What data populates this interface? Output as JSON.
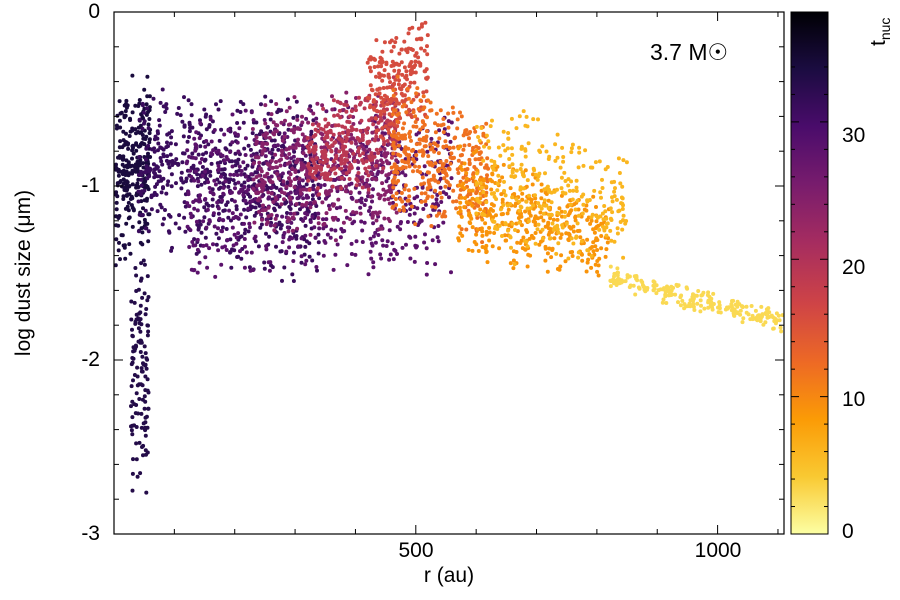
{
  "chart_data": {
    "type": "scatter",
    "xlabel": "r (au)",
    "ylabel": "log dust size (μm)",
    "xlim": [
      0,
      1110
    ],
    "ylim": [
      -3,
      0
    ],
    "x_ticks": [
      500,
      1000
    ],
    "y_ticks": [
      0,
      -1,
      -2,
      -3
    ],
    "annotation": "3.7 M☉",
    "grid": false,
    "colorbar": {
      "label": "t",
      "label_sub": "nuc",
      "range": [
        0,
        38
      ],
      "ticks": [
        0,
        10,
        20,
        30
      ],
      "colormap": [
        "#fcffa4",
        "#f9c932",
        "#fb9b06",
        "#ed6925",
        "#cf4446",
        "#a52c60",
        "#781c6d",
        "#4a0c6b",
        "#1b0c41",
        "#000004"
      ]
    },
    "series": [
      {
        "t_nuc": 34,
        "n": 280,
        "r_min": 3,
        "r_max": 60,
        "logsize_top": [
          -0.35,
          -0.33
        ],
        "logsize_bottom": [
          -1.5,
          -1.4
        ]
      },
      {
        "t_nuc": 33,
        "n": 130,
        "r_min": 28,
        "r_max": 58,
        "logsize_top": [
          -1.3,
          -1.3
        ],
        "logsize_bottom": [
          -2.85,
          -2.8
        ]
      },
      {
        "t_nuc": 31,
        "n": 650,
        "r_min": 40,
        "r_max": 340,
        "logsize_top": [
          -0.42,
          -0.45
        ],
        "logsize_bottom": [
          -1.35,
          -1.65
        ]
      },
      {
        "t_nuc": 28,
        "n": 650,
        "r_min": 120,
        "r_max": 560,
        "logsize_top": [
          -0.5,
          -0.5
        ],
        "logsize_bottom": [
          -1.6,
          -1.55
        ]
      },
      {
        "t_nuc": 24,
        "n": 450,
        "r_min": 230,
        "r_max": 470,
        "logsize_top": [
          -0.5,
          -0.4
        ],
        "logsize_bottom": [
          -1.35,
          -1.3
        ]
      },
      {
        "t_nuc": 19,
        "n": 280,
        "r_min": 320,
        "r_max": 470,
        "logsize_top": [
          -0.55,
          -0.3
        ],
        "logsize_bottom": [
          -1.1,
          -1.0
        ]
      },
      {
        "t_nuc": 16,
        "n": 220,
        "r_min": 420,
        "r_max": 520,
        "logsize_top": [
          -0.15,
          0.0
        ],
        "logsize_bottom": [
          -0.8,
          -0.7
        ]
      },
      {
        "t_nuc": 12,
        "n": 380,
        "r_min": 460,
        "r_max": 620,
        "logsize_top": [
          -0.35,
          -0.55
        ],
        "logsize_bottom": [
          -1.25,
          -1.35
        ]
      },
      {
        "t_nuc": 9,
        "n": 380,
        "r_min": 570,
        "r_max": 820,
        "logsize_top": [
          -0.7,
          -1.05
        ],
        "logsize_bottom": [
          -1.5,
          -1.55
        ]
      },
      {
        "t_nuc": 6,
        "n": 300,
        "r_min": 600,
        "r_max": 850,
        "logsize_top": [
          -0.38,
          -0.8
        ],
        "logsize_bottom": [
          -1.5,
          -1.5
        ]
      },
      {
        "t_nuc": 3,
        "n": 220,
        "r_min": 820,
        "r_max": 1110,
        "logsize_top": [
          -1.45,
          -1.7
        ],
        "logsize_bottom": [
          -1.6,
          -1.85
        ]
      }
    ]
  }
}
